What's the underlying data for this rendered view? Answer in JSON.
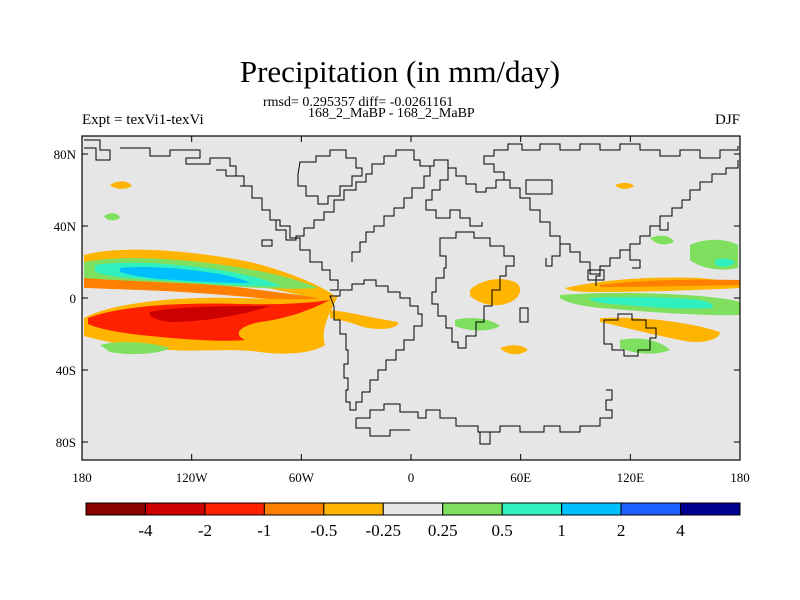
{
  "title": "Precipitation (in mm/day)",
  "stats": "rmsd= 0.295357 diff= -0.0261161",
  "cases": "168_2_MaBP - 168_2_MaBP",
  "expt": "Expt = texVi1-texVi",
  "season": "DJF",
  "map": {
    "lon_range": [
      -180,
      180
    ],
    "lat_range": [
      -90,
      90
    ],
    "background": "#e6e6e6",
    "lon_ticks": [
      {
        "value": -180,
        "label": "180"
      },
      {
        "value": -120,
        "label": "120W"
      },
      {
        "value": -60,
        "label": "60W"
      },
      {
        "value": 0,
        "label": "0"
      },
      {
        "value": 60,
        "label": "60E"
      },
      {
        "value": 120,
        "label": "120E"
      },
      {
        "value": 180,
        "label": "180"
      }
    ],
    "lat_ticks": [
      {
        "value": 80,
        "label": "80N"
      },
      {
        "value": 40,
        "label": "40N"
      },
      {
        "value": 0,
        "label": "0"
      },
      {
        "value": -40,
        "label": "40S"
      },
      {
        "value": -80,
        "label": "80S"
      }
    ]
  },
  "colorbar": {
    "colors": [
      "#8b0000",
      "#cc0000",
      "#ff2000",
      "#ff7f00",
      "#ffb400",
      "#e6e6e6",
      "#7fe060",
      "#30f0c0",
      "#00bfff",
      "#1e5fff",
      "#000090"
    ],
    "labels": [
      "-4",
      "-2",
      "-1",
      "-0.5",
      "-0.25",
      "0.25",
      "0.5",
      "1",
      "2",
      "4"
    ]
  }
}
